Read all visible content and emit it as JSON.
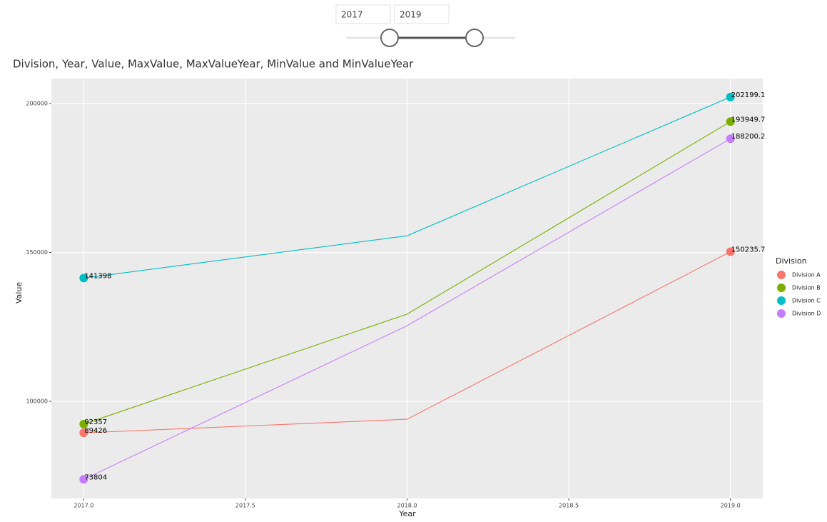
{
  "slicer": {
    "from": "2017",
    "to": "2019"
  },
  "chart_data": {
    "type": "line",
    "title": "Division, Year, Value, MaxValue, MaxValueYear, MinValue and MinValueYear",
    "x_label": "Year",
    "y_label": "Value",
    "x": [
      2017,
      2018,
      2019
    ],
    "series": [
      {
        "name": "Division A",
        "color": "#F8766D",
        "values": [
          89426,
          94000,
          150235.7
        ],
        "value_labels": [
          "89426",
          null,
          "150235.7"
        ]
      },
      {
        "name": "Division B",
        "color": "#7CAE00",
        "values": [
          92357,
          129300,
          193949.7
        ],
        "value_labels": [
          "92357",
          null,
          "193949.7"
        ]
      },
      {
        "name": "Division C",
        "color": "#00BFC4",
        "values": [
          141398,
          155600,
          202199.1
        ],
        "value_labels": [
          "141398",
          null,
          "202199.1"
        ]
      },
      {
        "name": "Division D",
        "color": "#C77CFF",
        "values": [
          73804,
          125400,
          188200.2
        ],
        "value_labels": [
          "73804",
          null,
          "188200.2"
        ]
      }
    ],
    "xlim": [
      2016.9,
      2019.1
    ],
    "xticks": [
      {
        "value": 2017,
        "label": "2017.0"
      },
      {
        "value": 2017.5,
        "label": "2017.5"
      },
      {
        "value": 2018,
        "label": "2018.0"
      },
      {
        "value": 2018.5,
        "label": "2018.5"
      },
      {
        "value": 2019,
        "label": "2019.0"
      }
    ],
    "ylim": [
      67400,
      208400
    ],
    "yticks": [
      100000,
      150000,
      200000
    ],
    "grid": true,
    "legend_title": "Division",
    "legend_position": "right"
  }
}
